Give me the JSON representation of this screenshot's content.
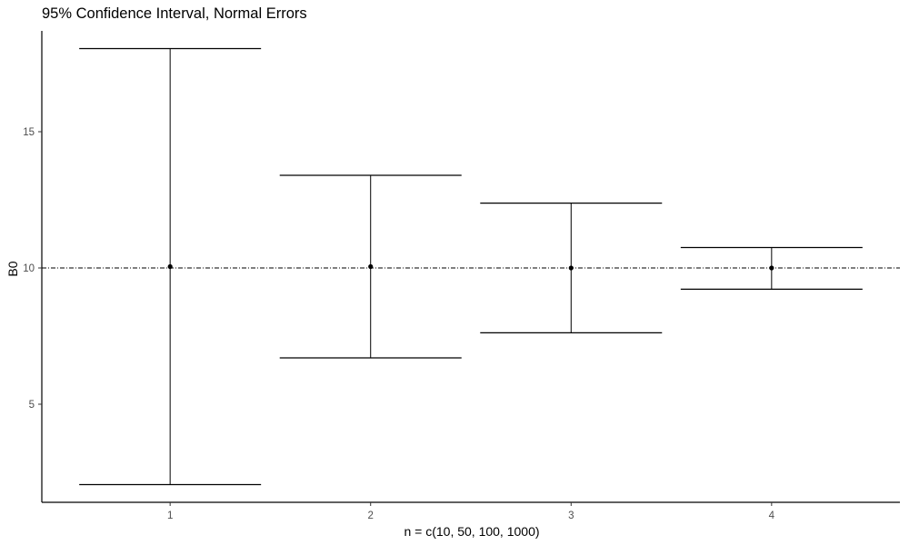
{
  "chart_data": {
    "type": "errorbar",
    "title": "95% Confidence Interval, Normal Errors",
    "xlabel": "n = c(10, 50, 100, 1000)",
    "ylabel": "B0",
    "categories": [
      "1",
      "2",
      "3",
      "4"
    ],
    "points": [
      {
        "x": 1,
        "estimate": 10.05,
        "lower": 2.05,
        "upper": 18.05
      },
      {
        "x": 2,
        "estimate": 10.05,
        "lower": 6.7,
        "upper": 13.4
      },
      {
        "x": 3,
        "estimate": 10.0,
        "lower": 7.62,
        "upper": 12.38
      },
      {
        "x": 4,
        "estimate": 10.0,
        "lower": 9.22,
        "upper": 10.75
      }
    ],
    "reference_line": {
      "y": 10,
      "style": "dotdash"
    },
    "y_ticks": [
      5,
      10,
      15
    ],
    "ylim": [
      1.4,
      18.7
    ],
    "xlim": [
      0.36,
      4.64
    ],
    "grid": false,
    "legend": "none"
  }
}
